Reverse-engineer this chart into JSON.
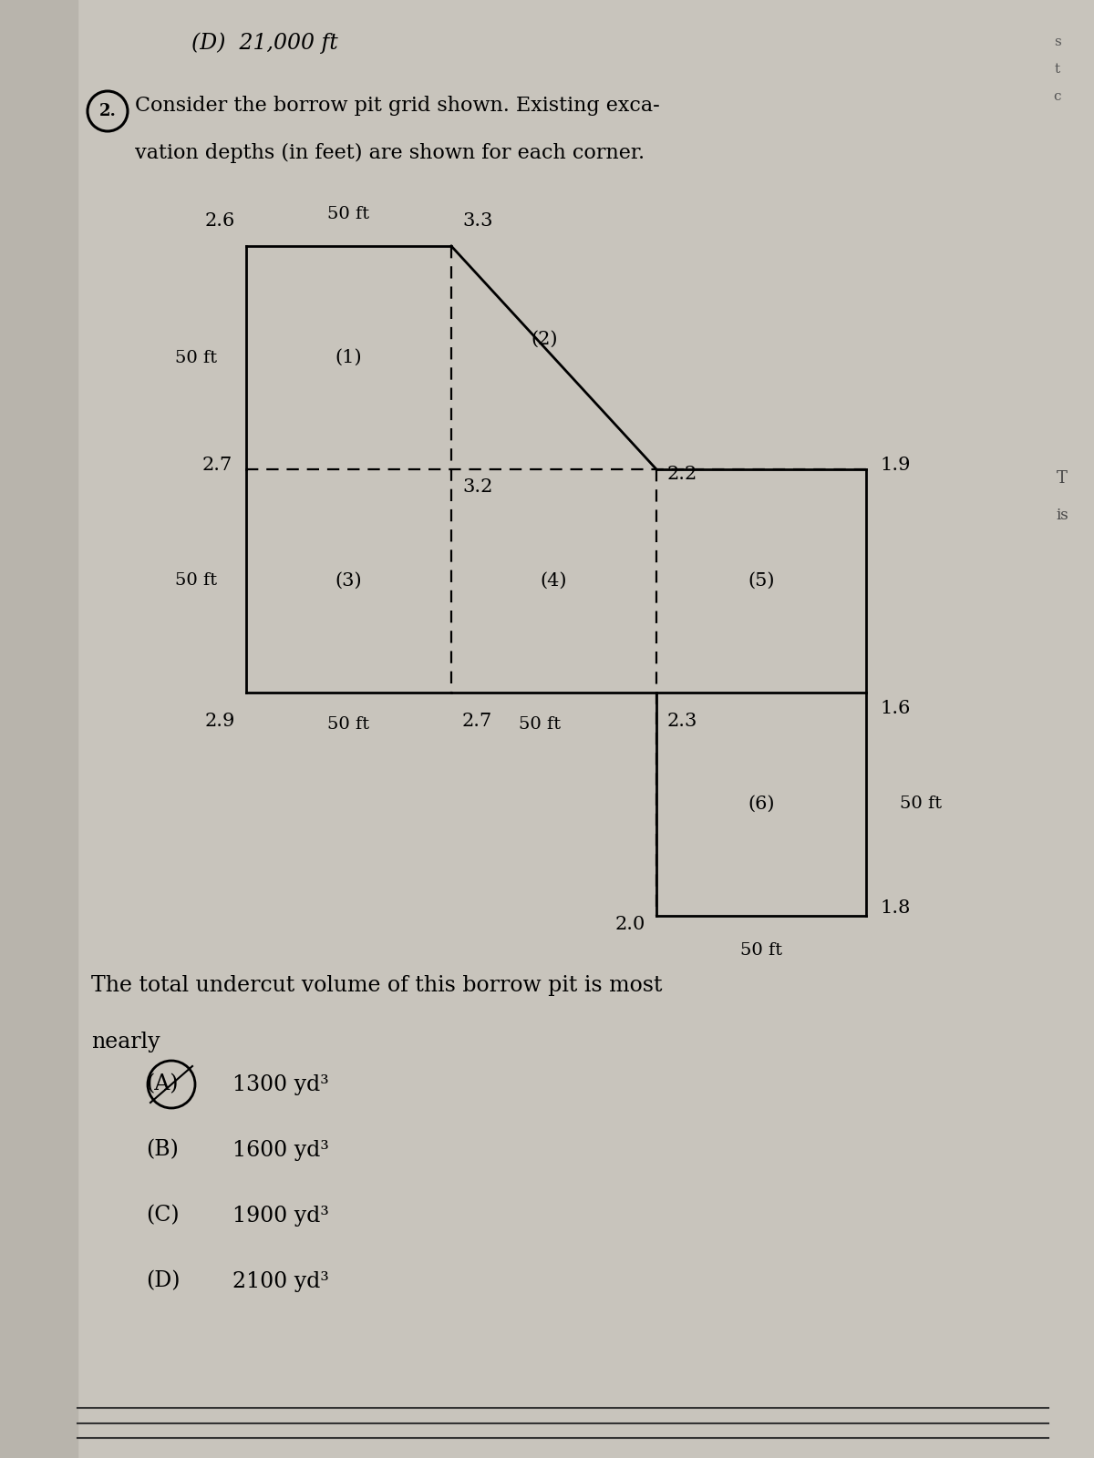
{
  "bg_color": "#c8c4bc",
  "page_color": "#d4d0c8",
  "title_line1": "(D)  21,000 ft",
  "problem_text1": "Consider the borrow pit grid shown. Existing exca-",
  "problem_text2": "vation depths (in feet) are shown for each corner.",
  "question_text1": "The total undercut volume of this borrow pit is most",
  "question_text2": "nearly",
  "choices": [
    {
      "label": "(A)",
      "text": "1300 yd³",
      "circled": true
    },
    {
      "label": "(B)",
      "text": "1600 yd³",
      "circled": false
    },
    {
      "label": "(C)",
      "text": "1900 yd³",
      "circled": false
    },
    {
      "label": "(D)",
      "text": "2100 yd³",
      "circled": false
    }
  ],
  "node_depths": {
    "r0c0": 2.6,
    "r0c1": 3.3,
    "r1c0": 2.7,
    "r1c1": 3.2,
    "r1c2": 2.2,
    "r1c3": 1.9,
    "r2c0": 2.9,
    "r2c1": 2.7,
    "r2c2": 2.3,
    "r2c3": 1.6,
    "r3c2": 2.0,
    "r3c3": 1.8
  },
  "font_size_header": 17,
  "font_size_problem": 16,
  "font_size_grid": 15,
  "font_size_choices": 17
}
